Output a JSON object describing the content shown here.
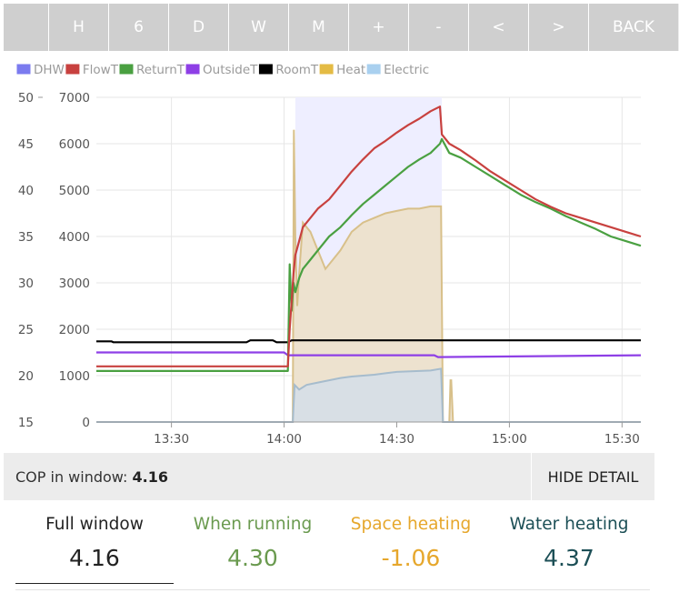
{
  "toolbar": {
    "buttons": [
      "",
      "H",
      "6",
      "D",
      "W",
      "M",
      "+",
      "-",
      "<",
      ">",
      "BACK"
    ]
  },
  "chart_data": {
    "type": "line",
    "title": "",
    "y_left_ticks": [
      15,
      20,
      25,
      30,
      35,
      40,
      45,
      50
    ],
    "y_right_ticks": [
      0,
      1000,
      2000,
      3000,
      4000,
      5000,
      6000,
      7000
    ],
    "ylim_temp": [
      15,
      50
    ],
    "ylim_power": [
      0,
      7000
    ],
    "x_range_min": [
      790,
      935
    ],
    "x_ticks": [
      {
        "min": 810,
        "label": "13:30"
      },
      {
        "min": 840,
        "label": "14:00"
      },
      {
        "min": 870,
        "label": "14:30"
      },
      {
        "min": 900,
        "label": "15:00"
      },
      {
        "min": 930,
        "label": "15:30"
      }
    ],
    "legend": [
      "DHW",
      "FlowT",
      "ReturnT",
      "OutsideT",
      "RoomT",
      "Heat",
      "Electric"
    ],
    "colors": {
      "DHW": "#7b7bef",
      "FlowT": "#c8413f",
      "ReturnT": "#4aa041",
      "OutsideT": "#8e3fe6",
      "RoomT": "#000000",
      "Heat": "#e4bb44",
      "Electric": "#a9d0ef",
      "dhw_band": "#eeeeff",
      "heat_fill": "#ece0cc",
      "elec_fill": "#d7dee6"
    },
    "dhw_band": {
      "start_min": 843,
      "end_min": 882
    },
    "series": [
      {
        "name": "FlowT",
        "axis": "temp",
        "x": [
          790,
          841,
          841.5,
          842.5,
          843,
          844,
          845,
          847,
          849,
          852,
          855,
          858,
          861,
          864,
          867,
          870,
          873,
          876,
          879,
          881.5,
          882,
          884,
          887,
          891,
          895,
          899,
          903,
          907,
          911,
          915,
          919,
          923,
          927,
          931,
          935
        ],
        "y": [
          21.0,
          21.0,
          25.0,
          31.0,
          33.0,
          34.5,
          36.0,
          37.0,
          38.0,
          39.0,
          40.5,
          42.0,
          43.3,
          44.5,
          45.3,
          46.2,
          47.0,
          47.7,
          48.5,
          49.0,
          46.0,
          45.0,
          44.3,
          43.2,
          42.0,
          41.0,
          40.0,
          39.0,
          38.2,
          37.5,
          37.0,
          36.5,
          36.0,
          35.5,
          35.0
        ]
      },
      {
        "name": "ReturnT",
        "axis": "temp",
        "x": [
          790,
          841,
          841.5,
          842,
          842.5,
          843,
          844,
          845,
          847,
          849,
          852,
          855,
          858,
          861,
          864,
          867,
          870,
          873,
          876,
          879,
          881.5,
          882,
          884,
          887,
          891,
          895,
          899,
          903,
          907,
          911,
          915,
          919,
          923,
          927,
          931,
          935
        ],
        "y": [
          20.5,
          20.5,
          32.0,
          27.0,
          30.0,
          29.0,
          30.5,
          31.5,
          32.5,
          33.5,
          35.0,
          36.0,
          37.3,
          38.5,
          39.5,
          40.5,
          41.5,
          42.5,
          43.3,
          44.0,
          45.0,
          45.5,
          44.0,
          43.5,
          42.5,
          41.5,
          40.5,
          39.5,
          38.7,
          38.0,
          37.2,
          36.5,
          35.8,
          35.0,
          34.5,
          34.0
        ]
      },
      {
        "name": "OutsideT",
        "axis": "temp",
        "x": [
          790,
          840,
          841,
          880,
          881,
          935
        ],
        "y": [
          22.5,
          22.5,
          22.2,
          22.2,
          22.0,
          22.2
        ]
      },
      {
        "name": "RoomT",
        "axis": "temp",
        "x": [
          790,
          794,
          794.5,
          830,
          831,
          837,
          838,
          841,
          842,
          935
        ],
        "y": [
          23.7,
          23.7,
          23.6,
          23.6,
          23.8,
          23.8,
          23.6,
          23.6,
          23.8,
          23.8
        ]
      },
      {
        "name": "Heat",
        "axis": "power",
        "x": [
          790,
          842.3,
          842.6,
          843,
          843.5,
          844,
          845,
          847,
          849,
          851,
          855,
          858,
          861,
          864,
          867,
          870,
          873,
          876,
          879,
          881.8,
          882.3,
          884,
          884.3,
          884.5,
          885,
          935
        ],
        "y": [
          0,
          0,
          6300,
          4000,
          2500,
          3200,
          4300,
          4100,
          3700,
          3300,
          3700,
          4100,
          4300,
          4400,
          4500,
          4550,
          4600,
          4600,
          4650,
          4650,
          0,
          0,
          900,
          900,
          0,
          0
        ]
      },
      {
        "name": "Electric",
        "axis": "power",
        "x": [
          790,
          842.3,
          842.8,
          844,
          846,
          849,
          852,
          855,
          858,
          861,
          864,
          867,
          870,
          873,
          876,
          879,
          881.8,
          882.3,
          935
        ],
        "y": [
          0,
          0,
          800,
          700,
          800,
          850,
          900,
          950,
          980,
          1000,
          1020,
          1050,
          1080,
          1090,
          1100,
          1110,
          1150,
          0,
          0
        ]
      }
    ]
  },
  "cop": {
    "label": "COP in window:",
    "value": "4.16",
    "hide_label": "HIDE DETAIL"
  },
  "stats": [
    {
      "label": "Full window",
      "value": "4.16",
      "color": "#222222"
    },
    {
      "label": "When running",
      "value": "4.30",
      "color": "#6a9a4f"
    },
    {
      "label": "Space heating",
      "value": "-1.06",
      "color": "#e6a72c"
    },
    {
      "label": "Water heating",
      "value": "4.37",
      "color": "#1c4f56"
    }
  ]
}
